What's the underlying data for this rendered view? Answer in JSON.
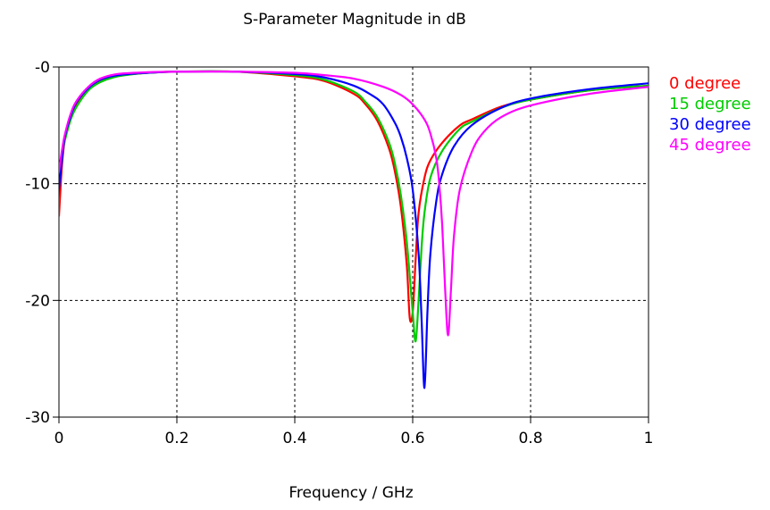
{
  "chart_data": {
    "type": "line",
    "title": "S-Parameter Magnitude in dB",
    "xlabel": "Frequency / GHz",
    "ylabel": "",
    "xlim": [
      0,
      1
    ],
    "ylim": [
      -30,
      0
    ],
    "xticks": [
      0,
      0.2,
      0.4,
      0.6,
      0.8,
      1
    ],
    "xtick_labels": [
      "0",
      "0.2",
      "0.4",
      "0.6",
      "0.8",
      "1"
    ],
    "yticks": [
      0,
      -10,
      -20,
      -30
    ],
    "ytick_labels": [
      "-0",
      "-10",
      "-20",
      "-30"
    ],
    "grid": true,
    "legend_position": "right",
    "series": [
      {
        "name": "0 degree",
        "color": "#ff0000",
        "x": [
          0,
          0.005,
          0.01,
          0.02,
          0.03,
          0.05,
          0.07,
          0.1,
          0.15,
          0.2,
          0.3,
          0.4,
          0.45,
          0.5,
          0.52,
          0.54,
          0.56,
          0.57,
          0.58,
          0.59,
          0.595,
          0.6,
          0.605,
          0.61,
          0.62,
          0.63,
          0.65,
          0.68,
          0.7,
          0.75,
          0.8,
          0.9,
          1.0
        ],
        "y": [
          -12.8,
          -8.5,
          -6.2,
          -4.3,
          -3.2,
          -1.8,
          -1.2,
          -0.75,
          -0.5,
          -0.4,
          -0.4,
          -0.8,
          -1.2,
          -2.3,
          -3.2,
          -4.6,
          -7.0,
          -9.0,
          -12.0,
          -17.0,
          -21.5,
          -21.0,
          -16.5,
          -12.5,
          -9.5,
          -8.0,
          -6.5,
          -5.0,
          -4.5,
          -3.4,
          -2.8,
          -2.0,
          -1.6
        ]
      },
      {
        "name": "15 degree",
        "color": "#00cc00",
        "x": [
          0,
          0.005,
          0.01,
          0.02,
          0.03,
          0.05,
          0.07,
          0.1,
          0.15,
          0.2,
          0.3,
          0.4,
          0.45,
          0.5,
          0.52,
          0.54,
          0.56,
          0.57,
          0.58,
          0.59,
          0.6,
          0.605,
          0.61,
          0.615,
          0.62,
          0.63,
          0.65,
          0.68,
          0.7,
          0.75,
          0.8,
          0.9,
          1.0
        ],
        "y": [
          -8.6,
          -7.5,
          -6.3,
          -4.5,
          -3.4,
          -2.0,
          -1.3,
          -0.8,
          -0.5,
          -0.4,
          -0.4,
          -0.7,
          -1.1,
          -2.1,
          -3.0,
          -4.3,
          -6.5,
          -8.3,
          -11.0,
          -15.0,
          -21.0,
          -23.5,
          -20.0,
          -15.5,
          -12.5,
          -9.5,
          -7.2,
          -5.3,
          -4.7,
          -3.5,
          -2.8,
          -2.0,
          -1.6
        ]
      },
      {
        "name": "30 degree",
        "color": "#0000ff",
        "x": [
          0,
          0.005,
          0.01,
          0.02,
          0.03,
          0.05,
          0.07,
          0.1,
          0.15,
          0.2,
          0.3,
          0.4,
          0.45,
          0.5,
          0.53,
          0.55,
          0.57,
          0.58,
          0.59,
          0.6,
          0.61,
          0.615,
          0.62,
          0.625,
          0.63,
          0.64,
          0.65,
          0.67,
          0.7,
          0.75,
          0.8,
          0.9,
          1.0
        ],
        "y": [
          -10.5,
          -8.0,
          -6.0,
          -4.2,
          -3.0,
          -1.8,
          -1.1,
          -0.7,
          -0.5,
          -0.4,
          -0.4,
          -0.6,
          -0.9,
          -1.6,
          -2.4,
          -3.2,
          -4.8,
          -6.0,
          -7.8,
          -10.5,
          -16.0,
          -21.5,
          -27.5,
          -21.0,
          -16.0,
          -11.5,
          -9.2,
          -6.8,
          -5.0,
          -3.5,
          -2.7,
          -1.9,
          -1.4
        ]
      },
      {
        "name": "45 degree",
        "color": "#ff00ff",
        "x": [
          0,
          0.005,
          0.01,
          0.02,
          0.03,
          0.05,
          0.07,
          0.1,
          0.15,
          0.2,
          0.3,
          0.4,
          0.45,
          0.5,
          0.55,
          0.58,
          0.6,
          0.62,
          0.63,
          0.64,
          0.645,
          0.65,
          0.655,
          0.66,
          0.665,
          0.67,
          0.68,
          0.7,
          0.72,
          0.75,
          0.8,
          0.9,
          1.0
        ],
        "y": [
          -9.0,
          -7.2,
          -5.8,
          -4.0,
          -2.9,
          -1.7,
          -1.0,
          -0.6,
          -0.45,
          -0.4,
          -0.4,
          -0.5,
          -0.7,
          -1.0,
          -1.7,
          -2.4,
          -3.2,
          -4.5,
          -5.7,
          -7.8,
          -10.0,
          -13.5,
          -19.0,
          -23.0,
          -19.0,
          -14.5,
          -10.5,
          -7.3,
          -5.6,
          -4.3,
          -3.3,
          -2.3,
          -1.7
        ]
      }
    ]
  }
}
